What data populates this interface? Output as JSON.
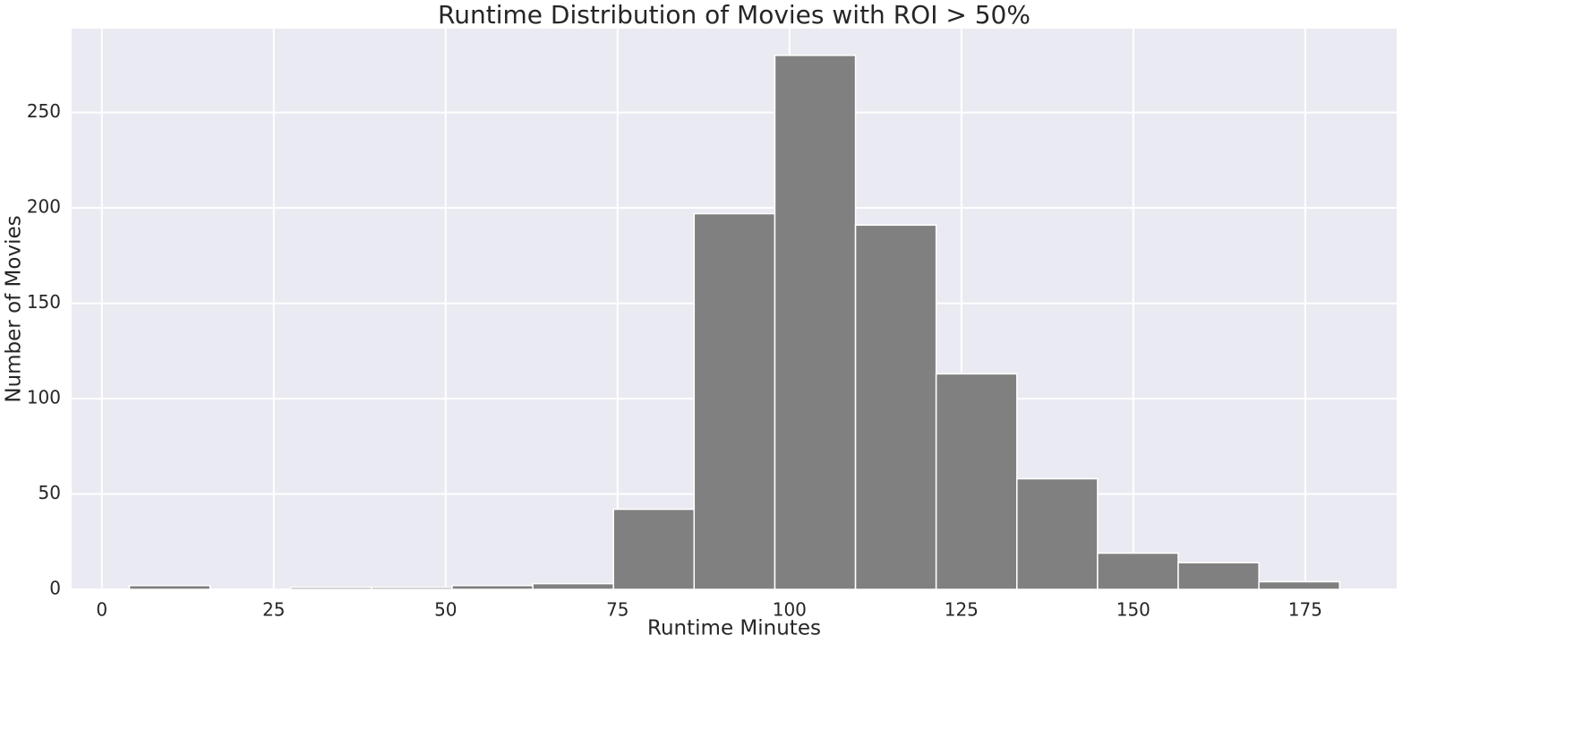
{
  "chart_data": {
    "type": "histogram",
    "title": "Runtime Distribution of Movies with ROI > 50%",
    "x_label": "Runtime Minutes",
    "y_label": "Number of Movies",
    "bins": [
      4,
      15.73,
      27.47,
      39.2,
      50.93,
      62.67,
      74.4,
      86.13,
      97.87,
      109.6,
      121.33,
      133.07,
      144.8,
      156.53,
      168.27,
      180
    ],
    "values": [
      2,
      0,
      1,
      1,
      2,
      3,
      42,
      197,
      280,
      191,
      113,
      58,
      19,
      14,
      4
    ],
    "color": "#808080",
    "xlim": [
      -4.4,
      188.3
    ],
    "xticks": [
      0,
      25,
      50,
      75,
      100,
      125,
      150,
      175
    ],
    "ylim": [
      0,
      294
    ],
    "yticks": [
      0,
      50,
      100,
      150,
      200,
      250
    ],
    "grid": true
  }
}
